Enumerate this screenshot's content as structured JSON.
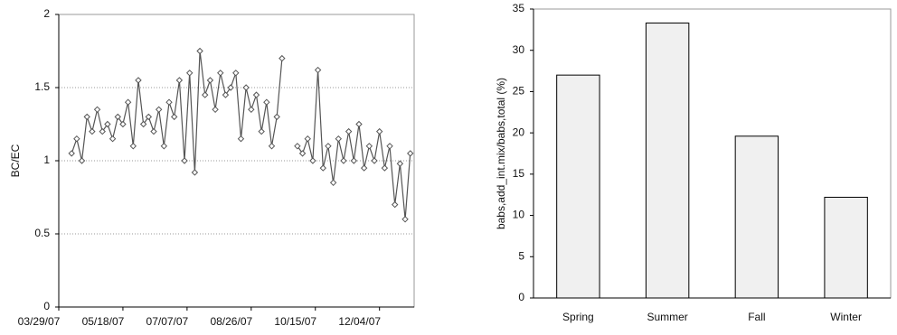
{
  "chart_data": [
    {
      "type": "line",
      "ylabel": "BC/EC",
      "x": [
        "04/08/07",
        "04/12/07",
        "04/16/07",
        "04/20/07",
        "04/24/07",
        "04/28/07",
        "05/02/07",
        "05/06/07",
        "05/10/07",
        "05/14/07",
        "05/18/07",
        "05/22/07",
        "05/26/07",
        "05/30/07",
        "06/03/07",
        "06/07/07",
        "06/11/07",
        "06/15/07",
        "06/19/07",
        "06/23/07",
        "06/27/07",
        "07/01/07",
        "07/05/07",
        "07/09/07",
        "07/13/07",
        "07/17/07",
        "07/21/07",
        "07/25/07",
        "07/29/07",
        "08/02/07",
        "08/06/07",
        "08/10/07",
        "08/14/07",
        "08/18/07",
        "08/22/07",
        "08/26/07",
        "08/30/07",
        "09/03/07",
        "09/07/07",
        "09/11/07",
        "09/15/07",
        "09/19/07",
        "09/23/07",
        "09/27/07",
        "10/01/07",
        "10/05/07",
        "10/09/07",
        "10/13/07",
        "10/17/07",
        "10/21/07",
        "10/25/07",
        "10/29/07",
        "11/02/07",
        "11/06/07",
        "11/10/07",
        "11/14/07",
        "11/18/07",
        "11/22/07",
        "11/26/07",
        "11/30/07",
        "12/04/07",
        "12/08/07",
        "12/12/07",
        "12/16/07",
        "12/20/07",
        "12/24/07",
        "12/28/07"
      ],
      "values": [
        1.05,
        1.15,
        1.0,
        1.3,
        1.2,
        1.35,
        1.2,
        1.25,
        1.15,
        1.3,
        1.25,
        1.4,
        1.1,
        1.55,
        1.25,
        1.3,
        1.2,
        1.35,
        1.1,
        1.4,
        1.3,
        1.55,
        1.0,
        1.6,
        0.92,
        1.75,
        1.45,
        1.55,
        1.35,
        1.6,
        1.45,
        1.5,
        1.6,
        1.15,
        1.5,
        1.35,
        1.45,
        1.2,
        1.4,
        1.1,
        1.3,
        1.7,
        null,
        null,
        1.1,
        1.05,
        1.15,
        1.0,
        1.62,
        0.95,
        1.1,
        0.85,
        1.15,
        1.0,
        1.2,
        1.0,
        1.25,
        0.95,
        1.1,
        1.0,
        1.2,
        0.95,
        1.1,
        0.7,
        0.98,
        0.6,
        1.05
      ],
      "color": "#555555",
      "xlim": [
        "03/29/07",
        "12/31/07"
      ],
      "xticks": [
        "03/29/07",
        "05/18/07",
        "07/07/07",
        "08/26/07",
        "10/15/07",
        "12/04/07"
      ],
      "ylim": [
        0,
        2
      ],
      "yticks": [
        0,
        0.5,
        1,
        1.5,
        2
      ],
      "grid": true
    },
    {
      "type": "bar",
      "ylabel": "babs,add_int.mix/babs,total (%)",
      "categories": [
        "Spring",
        "Summer",
        "Fall",
        "Winter"
      ],
      "values": [
        27,
        33.3,
        19.6,
        12.2
      ],
      "color": "#f0f0f0",
      "ylim": [
        0,
        35
      ],
      "yticks": [
        0,
        5,
        10,
        15,
        20,
        25,
        30,
        35
      ],
      "grid": false
    }
  ]
}
